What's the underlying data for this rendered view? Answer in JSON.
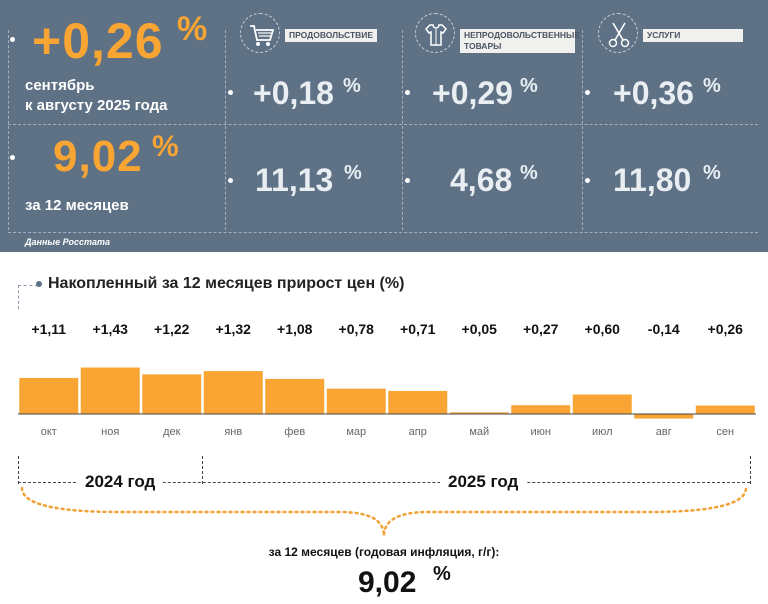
{
  "header": {
    "monthly": {
      "value": "+0,26",
      "unit": "%",
      "line1": "сентябрь",
      "line2": "к августу 2025 года"
    },
    "annual": {
      "value": "9,02",
      "unit": "%",
      "label": "за 12 месяцев"
    },
    "source": "Данные Росстата",
    "categories": [
      {
        "tag": "ПРОДОВОЛЬСТВИЕ",
        "icon": "shopping-cart-icon",
        "monthly": "+0,18",
        "annual": "11,13",
        "unit": "%"
      },
      {
        "tag": "НЕПРОДОВОЛЬСТВЕННЫЕ ТОВАРЫ",
        "icon": "clothing-icon",
        "monthly": "+0,29",
        "annual": "4,68",
        "unit": "%"
      },
      {
        "tag": "УСЛУГИ",
        "icon": "scissors-icon",
        "monthly": "+0,36",
        "annual": "11,80",
        "unit": "%"
      }
    ]
  },
  "chart_data": {
    "type": "bar",
    "title": "Накопленный за 12 месяцев прирост цен (%)",
    "categories": [
      "окт",
      "ноя",
      "дек",
      "янв",
      "фев",
      "мар",
      "апр",
      "май",
      "июн",
      "июл",
      "авг",
      "сен"
    ],
    "values": [
      1.11,
      1.43,
      1.22,
      1.32,
      1.08,
      0.78,
      0.71,
      0.05,
      0.27,
      0.6,
      -0.14,
      0.26
    ],
    "value_labels": [
      "+1,11",
      "+1,43",
      "+1,22",
      "+1,32",
      "+1,08",
      "+0,78",
      "+0,71",
      "+0,05",
      "+0,27",
      "+0,60",
      "-0,14",
      "+0,26"
    ],
    "color": "#f8a533",
    "year_groups": [
      {
        "label": "2024 год",
        "span": [
          "окт",
          "дек"
        ]
      },
      {
        "label": "2025 год",
        "span": [
          "янв",
          "сен"
        ]
      }
    ]
  },
  "footer": {
    "text": "за 12 месяцев (годовая инфляция, г/г):",
    "value": "9,02",
    "unit": "%"
  }
}
